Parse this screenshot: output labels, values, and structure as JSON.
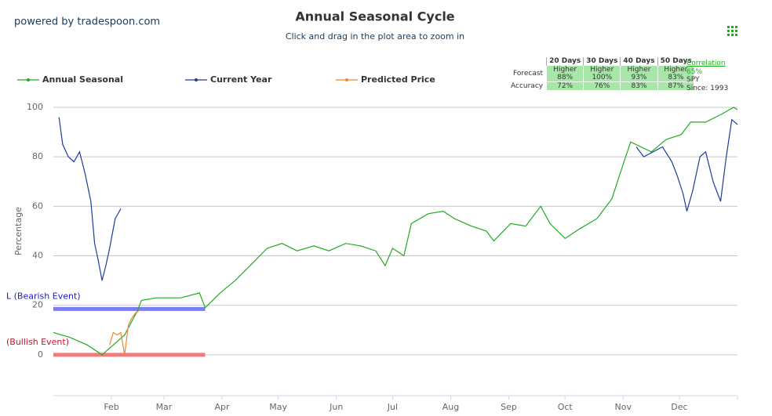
{
  "brand": "powered by tradespoon.com",
  "chart_data": {
    "type": "line",
    "title": "Annual Seasonal Cycle",
    "subtitle": "Click and drag in the plot area to zoom in",
    "ylabel": "Percentage",
    "xlim": [
      0,
      365
    ],
    "xticks": [
      {
        "value": 31,
        "label": "Feb"
      },
      {
        "value": 59,
        "label": "Mar"
      },
      {
        "value": 90,
        "label": "Apr"
      },
      {
        "value": 120,
        "label": "May"
      },
      {
        "value": 151,
        "label": "Jun"
      },
      {
        "value": 181,
        "label": "Jul"
      },
      {
        "value": 212,
        "label": "Aug"
      },
      {
        "value": 243,
        "label": "Sep"
      },
      {
        "value": 273,
        "label": "Oct"
      },
      {
        "value": 304,
        "label": "Nov"
      },
      {
        "value": 334,
        "label": "Dec"
      }
    ],
    "ylim": [
      -16.5,
      102.2
    ],
    "yticks": [
      0,
      20,
      40,
      60,
      80,
      100
    ],
    "grid": true,
    "series": [
      {
        "name": "Annual Seasonal",
        "color": "#22aa22",
        "x": [
          0,
          9,
          18,
          26,
          38,
          45,
          47,
          55,
          68,
          78,
          81,
          89,
          97,
          105,
          114,
          122,
          130,
          139,
          147,
          156,
          164,
          172,
          177,
          181,
          187,
          191,
          200,
          208,
          214,
          223,
          231,
          235,
          244,
          252,
          260,
          265,
          273,
          281,
          290,
          298,
          304,
          308,
          319,
          327,
          335,
          340,
          348,
          356,
          363,
          365
        ],
        "values": [
          9,
          7,
          4,
          0,
          8,
          18,
          22,
          23,
          23,
          25,
          19,
          25,
          30,
          36,
          43,
          45,
          42,
          44,
          42,
          45,
          44,
          42,
          36,
          43,
          40,
          53,
          57,
          58,
          55,
          52,
          50,
          46,
          53,
          52,
          60,
          53,
          47,
          51,
          55,
          63,
          77,
          86,
          82,
          87,
          89,
          94,
          94,
          97,
          100,
          99
        ]
      },
      {
        "name": "Current Year",
        "color": "#1f3c99",
        "x": [
          3,
          5,
          8,
          11,
          14,
          17,
          20,
          22,
          24,
          26,
          28,
          30,
          33,
          36,
          200,
          311,
          315,
          320,
          325,
          330,
          333,
          336,
          338,
          341,
          345,
          348,
          352,
          356,
          359,
          362,
          365
        ],
        "values": [
          96,
          85,
          80,
          78,
          82,
          73,
          62,
          45,
          38,
          30,
          36,
          43,
          55,
          59,
          null,
          84,
          80,
          82,
          84,
          78,
          72,
          65,
          58,
          66,
          80,
          82,
          70,
          62,
          80,
          95,
          93
        ]
      },
      {
        "name": "Predicted Price",
        "color": "#ee8833",
        "x": [
          30,
          32,
          34,
          36,
          38,
          40,
          42,
          44,
          46
        ],
        "values": [
          4,
          9,
          8,
          9,
          0,
          12,
          15,
          17,
          18
        ]
      }
    ],
    "events": [
      {
        "label": "L (Bearish Event)",
        "value": 18.5,
        "xrange": [
          0,
          81
        ],
        "color": "#6f6ff2",
        "text_color": "#1a1acc"
      },
      {
        "label": "(Bullish Event)",
        "value": 0,
        "xrange": [
          0,
          81
        ],
        "color": "#f27070",
        "text_color": "#d0102a"
      }
    ],
    "forecast_table": {
      "columns": [
        "20 Days",
        "30 Days",
        "40 Days",
        "50 Days"
      ],
      "rows": [
        {
          "label": "Forecast",
          "cells": [
            [
              "Higher",
              "88%"
            ],
            [
              "Higher",
              "100%"
            ],
            [
              "Higher",
              "93%"
            ],
            [
              "Higher",
              "83%"
            ]
          ]
        },
        {
          "label": "Accuracy",
          "cells": [
            "72%",
            "76%",
            "83%",
            "87%"
          ]
        }
      ],
      "side": [
        "Correlation",
        "65%",
        "SPY",
        "Since: 1993"
      ]
    }
  }
}
